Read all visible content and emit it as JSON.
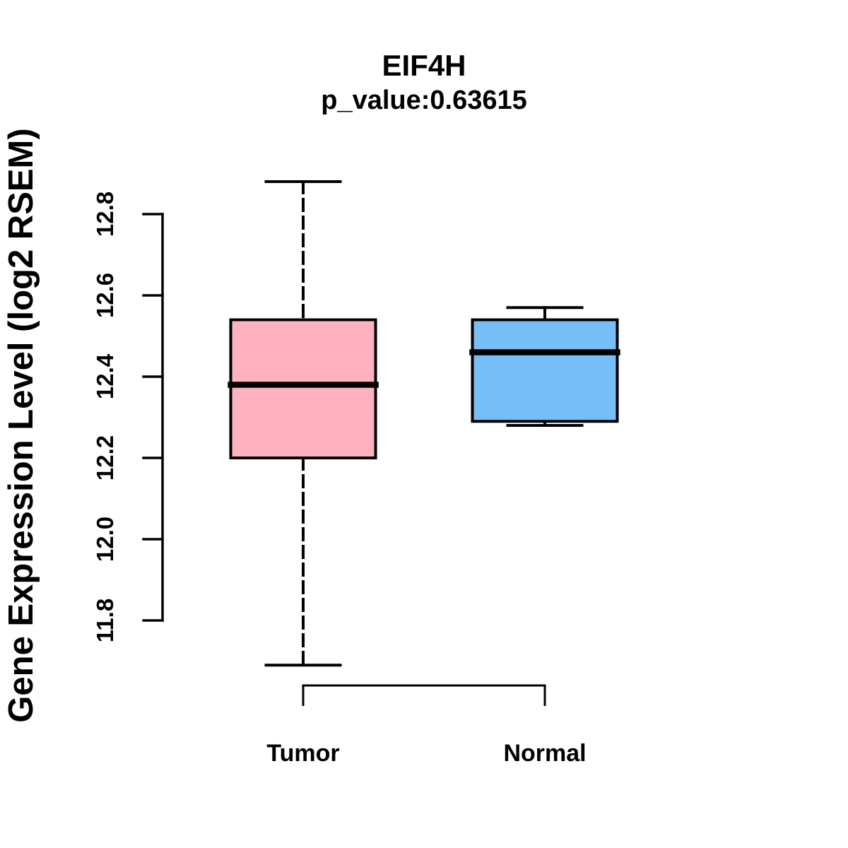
{
  "title": "EIF4H",
  "subtitle": "p_value:0.63615",
  "chart_data": {
    "type": "boxplot",
    "title": "EIF4H",
    "subtitle": "p_value:0.63615",
    "xlabel": "",
    "ylabel": "Gene Expression Level (log2 RSEM)",
    "y_ticks": [
      11.8,
      12.0,
      12.2,
      12.4,
      12.6,
      12.8
    ],
    "y_tick_labels": [
      "11.8",
      "12.0",
      "12.2",
      "12.4",
      "12.6",
      "12.8"
    ],
    "ylim": [
      11.65,
      12.92
    ],
    "grid": false,
    "legend": "none",
    "categories": [
      "Tumor",
      "Normal"
    ],
    "groups": [
      {
        "label": "Tumor",
        "fill": "#FFB1C0",
        "stats": {
          "lower_whisker": 11.69,
          "q1": 12.2,
          "median": 12.38,
          "q3": 12.54,
          "upper_whisker": 12.88
        }
      },
      {
        "label": "Normal",
        "fill": "#75BEF8",
        "stats": {
          "lower_whisker": 12.28,
          "q1": 12.29,
          "median": 12.46,
          "q3": 12.54,
          "upper_whisker": 12.57
        }
      }
    ],
    "colors": {
      "stroke": "#000000",
      "tumor_fill": "#FFB1C0",
      "normal_fill": "#75BEF8",
      "background": "#FFFFFF"
    }
  }
}
